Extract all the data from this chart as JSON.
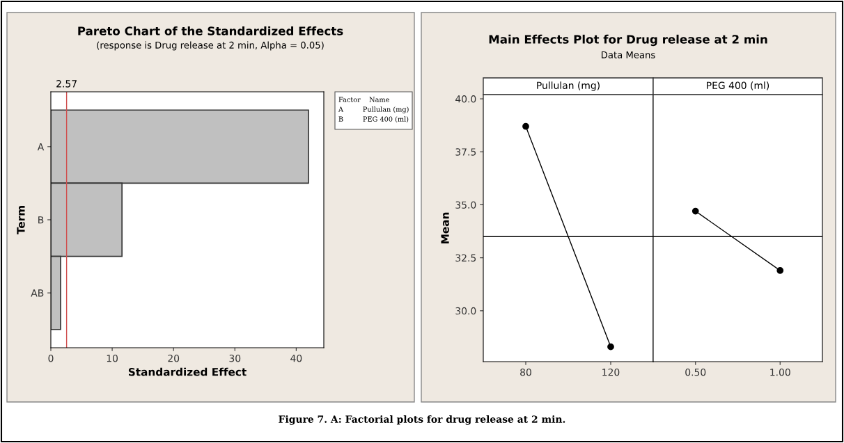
{
  "chart_data": [
    {
      "type": "bar",
      "orientation": "horizontal",
      "title": "Pareto Chart of the Standardized Effects",
      "subtitle": "(response is Drug release at 2 min, Alpha = 0.05)",
      "xlabel": "Standardized Effect",
      "ylabel": "Term",
      "categories": [
        "A",
        "B",
        "AB"
      ],
      "values": [
        42.0,
        11.6,
        1.6
      ],
      "color": "#c0c0c0",
      "xlim": [
        0,
        44.5
      ],
      "xticks": [
        0,
        10,
        20,
        30,
        40
      ],
      "ref_lines": [
        {
          "axis": "x",
          "value": 2.57,
          "label": "2.57",
          "color": "#d05050"
        }
      ],
      "annotations": [
        "Factor    Name",
        "A         Pullulan (mg)",
        "B         PEG 400 (ml)"
      ],
      "grid": false
    },
    {
      "type": "line",
      "title": "Main Effects Plot for Drug release at 2 min",
      "subtitle": "Data Means",
      "xlabel": "Pullulan (mg)",
      "ylabel": "Mean",
      "categories": [
        "80",
        "120"
      ],
      "values": [
        38.7,
        28.3
      ],
      "color": "#000000",
      "marker": "circle",
      "line_style": "solid",
      "ylim": [
        27.6,
        40.2
      ],
      "yticks": [
        {
          "value": 30,
          "label": "30.0"
        },
        {
          "value": 32.5,
          "label": "32.5"
        },
        {
          "value": 35,
          "label": "35.0"
        },
        {
          "value": 37.5,
          "label": "37.5"
        },
        {
          "value": 40,
          "label": "40.0"
        }
      ],
      "ref_lines": [
        {
          "axis": "y",
          "value": 33.5,
          "color": "#000000"
        }
      ],
      "grid": false
    },
    {
      "type": "line",
      "xlabel": "PEG 400 (ml)",
      "categories": [
        "0.50",
        "1.00"
      ],
      "values": [
        34.7,
        31.9
      ],
      "color": "#000000",
      "marker": "circle",
      "line_style": "solid",
      "ylim": [
        27.6,
        40.2
      ],
      "tick_labels": "x",
      "ref_lines": [
        {
          "axis": "y",
          "value": 33.5,
          "color": "#000000"
        }
      ],
      "grid": false,
      "annotations": [
        "Figure 7. A: Factorial plots for drug release at 2 min."
      ]
    }
  ]
}
